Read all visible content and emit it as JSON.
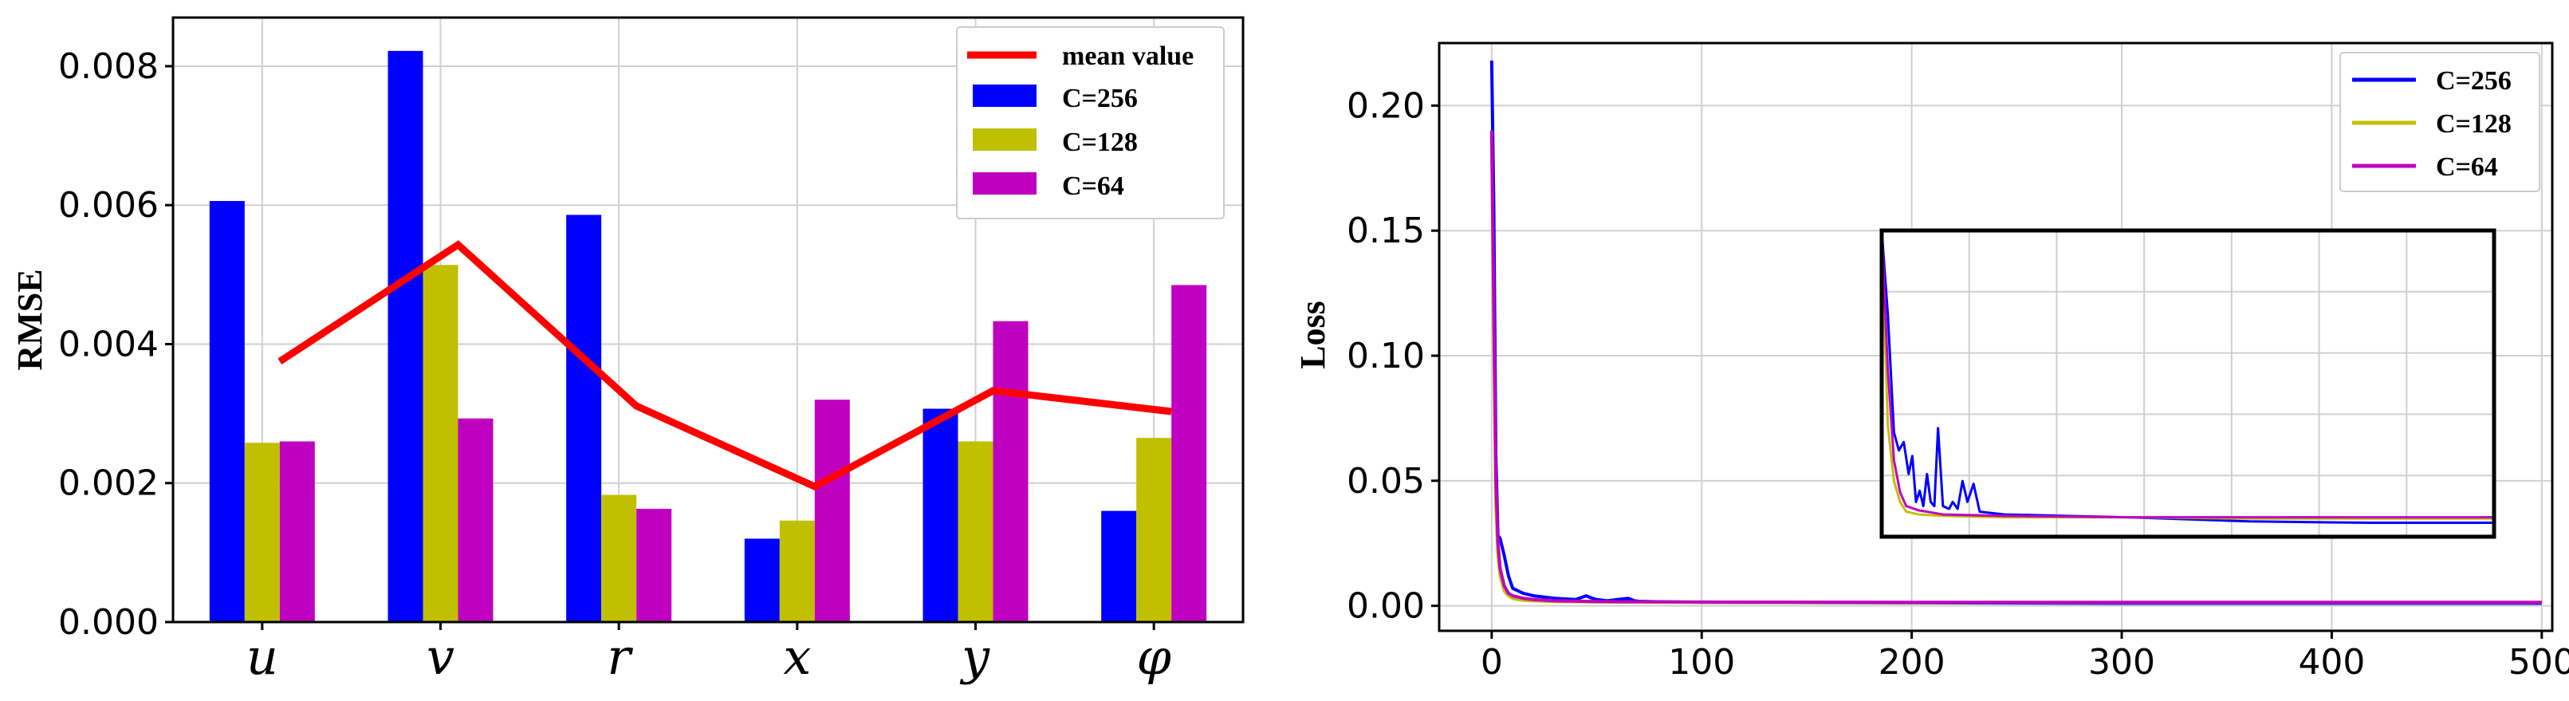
{
  "chart_data": [
    {
      "type": "bar",
      "title": "",
      "xlabel": "",
      "ylabel": "RMSE",
      "ylim": [
        0,
        0.0087
      ],
      "yticks": [
        "0.000",
        "0.002",
        "0.004",
        "0.006",
        "0.008"
      ],
      "categories": [
        "u",
        "v",
        "r",
        "x",
        "y",
        "φ"
      ],
      "series": [
        {
          "name": "C=256",
          "color": "#0000ff",
          "values": [
            0.00606,
            0.00822,
            0.00586,
            0.0012,
            0.00307,
            0.0016
          ]
        },
        {
          "name": "C=128",
          "color": "#c0c000",
          "values": [
            0.00258,
            0.00514,
            0.00183,
            0.00146,
            0.0026,
            0.00265
          ]
        },
        {
          "name": "C=64",
          "color": "#c000c0",
          "values": [
            0.0026,
            0.00293,
            0.00163,
            0.0032,
            0.00433,
            0.00485
          ]
        }
      ],
      "line": {
        "name": "mean value",
        "color": "#ff0000",
        "values": [
          0.00375,
          0.00543,
          0.00311,
          0.00195,
          0.00333,
          0.00303
        ]
      },
      "legend": [
        "mean value",
        "C=256",
        "C=128",
        "C=64"
      ],
      "legend_position": "top-right",
      "grid": true
    },
    {
      "type": "line",
      "title": "",
      "xlabel": "",
      "ylabel": "Loss",
      "xlim": [
        -25,
        505
      ],
      "ylim": [
        -0.01,
        0.225
      ],
      "xticks": [
        "0",
        "100",
        "200",
        "300",
        "400",
        "500"
      ],
      "yticks": [
        "0.00",
        "0.05",
        "0.10",
        "0.15",
        "0.20"
      ],
      "series": [
        {
          "name": "C=256",
          "color": "#0000ff",
          "x": [
            0,
            1,
            2,
            3,
            4,
            6,
            8,
            10,
            15,
            20,
            30,
            40,
            45,
            48,
            50,
            55,
            60,
            65,
            68,
            70,
            80,
            100,
            200,
            300,
            400,
            500
          ],
          "y": [
            0.218,
            0.16,
            0.06,
            0.028,
            0.027,
            0.02,
            0.012,
            0.007,
            0.005,
            0.004,
            0.003,
            0.0025,
            0.004,
            0.003,
            0.0025,
            0.002,
            0.0025,
            0.003,
            0.002,
            0.0018,
            0.0016,
            0.0014,
            0.0012,
            0.001,
            0.001,
            0.001
          ]
        },
        {
          "name": "C=128",
          "color": "#c0c000",
          "x": [
            0,
            1,
            2,
            3,
            4,
            6,
            8,
            10,
            15,
            20,
            30,
            50,
            100,
            200,
            300,
            400,
            500
          ],
          "y": [
            0.19,
            0.11,
            0.04,
            0.02,
            0.012,
            0.006,
            0.004,
            0.003,
            0.0022,
            0.002,
            0.0017,
            0.0015,
            0.0014,
            0.0013,
            0.0013,
            0.0013,
            0.0013
          ]
        },
        {
          "name": "C=64",
          "color": "#c000c0",
          "x": [
            0,
            1,
            2,
            3,
            4,
            6,
            8,
            10,
            15,
            20,
            30,
            50,
            100,
            200,
            300,
            400,
            500
          ],
          "y": [
            0.19,
            0.12,
            0.05,
            0.025,
            0.015,
            0.008,
            0.005,
            0.004,
            0.003,
            0.0025,
            0.002,
            0.0017,
            0.0015,
            0.0014,
            0.0014,
            0.0014,
            0.0014
          ]
        }
      ],
      "inset": {
        "xlim": [
          0,
          500
        ],
        "ylim": [
          0.0,
          0.022
        ],
        "series": [
          {
            "name": "C=256",
            "color": "#0000ff",
            "x": [
              0,
              5,
              10,
              14,
              18,
              22,
              25,
              28,
              31,
              34,
              37,
              40,
              43,
              46,
              50,
              55,
              58,
              62,
              66,
              70,
              75,
              80,
              100,
              150,
              200,
              300,
              400,
              500
            ],
            "y": [
              0.03,
              0.016,
              0.0075,
              0.0062,
              0.0068,
              0.0045,
              0.0058,
              0.0025,
              0.0033,
              0.0022,
              0.0045,
              0.0025,
              0.0022,
              0.0078,
              0.0022,
              0.002,
              0.0025,
              0.002,
              0.004,
              0.0025,
              0.0038,
              0.0018,
              0.0016,
              0.0015,
              0.0014,
              0.0011,
              0.001,
              0.001
            ]
          },
          {
            "name": "C=128",
            "color": "#c0c000",
            "x": [
              0,
              5,
              10,
              15,
              20,
              30,
              50,
              100,
              200,
              300,
              400,
              500
            ],
            "y": [
              0.03,
              0.008,
              0.004,
              0.0025,
              0.0018,
              0.0016,
              0.0015,
              0.0014,
              0.0014,
              0.0013,
              0.0013,
              0.0013
            ]
          },
          {
            "name": "C=64",
            "color": "#c000c0",
            "x": [
              0,
              5,
              10,
              15,
              20,
              30,
              50,
              100,
              200,
              300,
              400,
              500
            ],
            "y": [
              0.03,
              0.012,
              0.0055,
              0.0032,
              0.0022,
              0.0019,
              0.0016,
              0.0015,
              0.0014,
              0.0014,
              0.0014,
              0.0014
            ]
          }
        ]
      },
      "legend": [
        "C=256",
        "C=128",
        "C=64"
      ],
      "legend_position": "top-right",
      "grid": true
    }
  ]
}
